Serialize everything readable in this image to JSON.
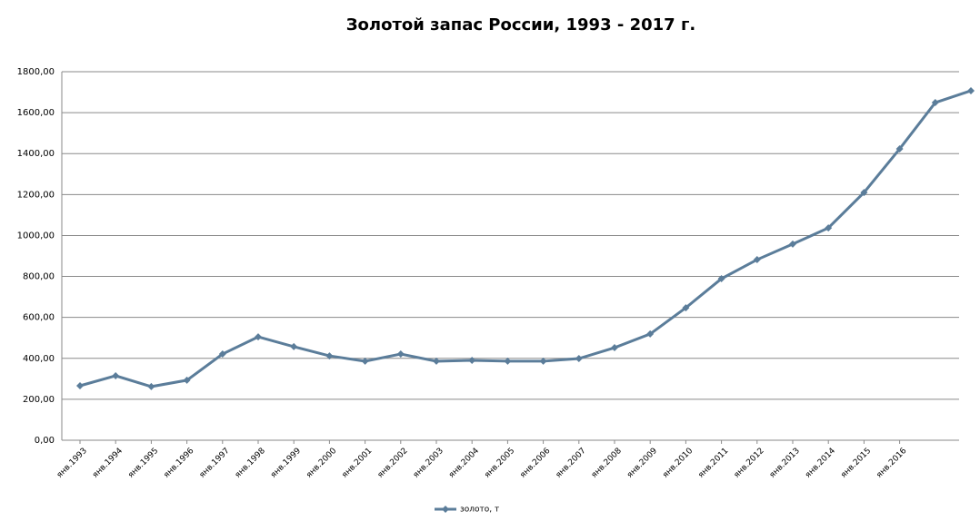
{
  "chart_data": {
    "type": "line",
    "title": "Золотой запас России, 1993 - 2017 г.",
    "categories": [
      "янв.1993",
      "янв.1994",
      "янв.1995",
      "янв.1996",
      "янв.1997",
      "янв.1998",
      "янв.1999",
      "янв.2000",
      "янв.2001",
      "янв.2002",
      "янв.2003",
      "янв.2004",
      "янв.2005",
      "янв.2006",
      "янв.2007",
      "янв.2008",
      "янв.2009",
      "янв.2010",
      "янв.2011",
      "янв.2012",
      "янв.2013",
      "янв.2014",
      "янв.2015",
      "янв.2016",
      null,
      null
    ],
    "series": [
      {
        "name": "золото, т",
        "color": "#5b7d9a",
        "values": [
          266,
          315,
          262,
          293,
          421,
          505,
          457,
          412,
          386,
          421,
          386,
          390,
          386,
          386,
          399,
          452,
          519,
          647,
          789,
          882,
          958,
          1037,
          1210,
          1423,
          1649,
          1707
        ]
      }
    ],
    "ylim": [
      0,
      1800
    ],
    "yticks": [
      {
        "value": 0,
        "label": "0,00"
      },
      {
        "value": 200,
        "label": "200,00"
      },
      {
        "value": 400,
        "label": "400,00"
      },
      {
        "value": 600,
        "label": "600,00"
      },
      {
        "value": 800,
        "label": "800,00"
      },
      {
        "value": 1000,
        "label": "1000,00"
      },
      {
        "value": 1200,
        "label": "1200,00"
      },
      {
        "value": 1400,
        "label": "1400,00"
      },
      {
        "value": 1600,
        "label": "1600,00"
      },
      {
        "value": 1800,
        "label": "1800,00"
      }
    ],
    "grid": true,
    "legend": "bottom"
  }
}
